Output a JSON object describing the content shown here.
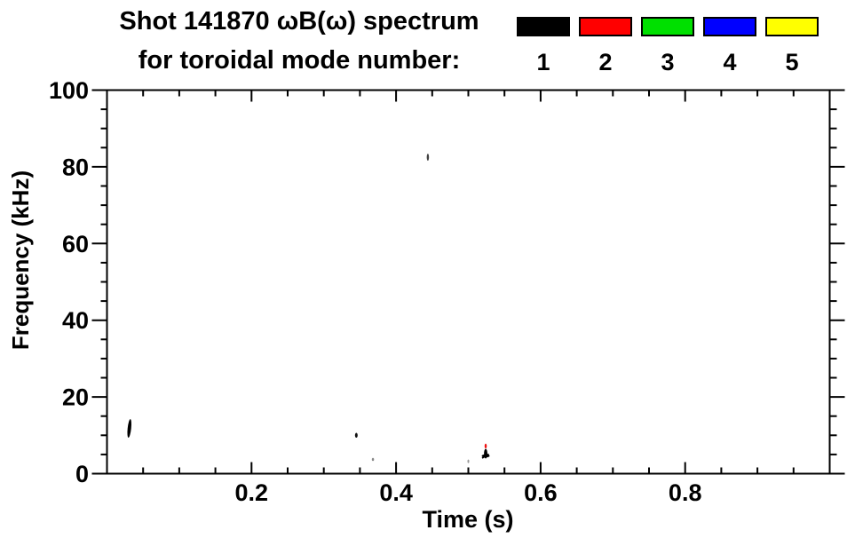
{
  "chart_data": {
    "type": "scatter",
    "title": "Shot 141870 ωB(ω) spectrum",
    "subtitle": "for toroidal mode number:",
    "x_axis": {
      "label": "Time (s)",
      "min": 0,
      "max": 1.0,
      "major_ticks": [
        0,
        0.2,
        0.4,
        0.6,
        0.8,
        1.0
      ],
      "labeled_ticks": [
        {
          "value": 0.2,
          "label": "0.2"
        },
        {
          "value": 0.4,
          "label": "0.4"
        },
        {
          "value": 0.6,
          "label": "0.6"
        },
        {
          "value": 0.8,
          "label": "0.8"
        }
      ],
      "minor_step": 0.05
    },
    "y_axis": {
      "label": "Frequency (kHz)",
      "min": 0,
      "max": 100,
      "major_ticks": [
        0,
        20,
        40,
        60,
        80,
        100
      ],
      "labeled_ticks": [
        {
          "value": 0,
          "label": "0"
        },
        {
          "value": 20,
          "label": "20"
        },
        {
          "value": 40,
          "label": "40"
        },
        {
          "value": 60,
          "label": "60"
        },
        {
          "value": 80,
          "label": "80"
        },
        {
          "value": 100,
          "label": "100"
        }
      ],
      "minor_step": 5
    },
    "legend": {
      "title": "for toroidal mode number:",
      "items": [
        {
          "label": "1",
          "color": "#000000"
        },
        {
          "label": "2",
          "color": "#ff0000"
        },
        {
          "label": "3",
          "color": "#00e000"
        },
        {
          "label": "4",
          "color": "#0000ff"
        },
        {
          "label": "5",
          "color": "#ffff00"
        }
      ]
    },
    "points": [
      {
        "t": 0.031,
        "f": 11.8,
        "mode": 1,
        "color": "#000000",
        "w": 4,
        "h": 21,
        "shape": "streak"
      },
      {
        "t": 0.345,
        "f": 10.0,
        "mode": 1,
        "color": "#111111",
        "w": 3,
        "h": 5.5,
        "shape": "dot"
      },
      {
        "t": 0.368,
        "f": 3.7,
        "mode": 1,
        "color": "#888888",
        "w": 2.5,
        "h": 3.5,
        "shape": "dot"
      },
      {
        "t": 0.444,
        "f": 82.5,
        "mode": 1,
        "color": "#444444",
        "w": 2.5,
        "h": 8,
        "shape": "dot"
      },
      {
        "t": 0.5,
        "f": 3.2,
        "mode": 1,
        "color": "#999999",
        "w": 2,
        "h": 4,
        "shape": "dot"
      },
      {
        "t": 0.524,
        "f": 7.2,
        "mode": 2,
        "color": "#ee1111",
        "w": 2.5,
        "h": 5.5,
        "shape": "dot"
      },
      {
        "t": 0.524,
        "f": 5.2,
        "mode": 1,
        "color": "#000000",
        "w": 9,
        "h": 11,
        "shape": "cluster"
      }
    ],
    "axis_color": "#000000",
    "background": "#ffffff"
  }
}
